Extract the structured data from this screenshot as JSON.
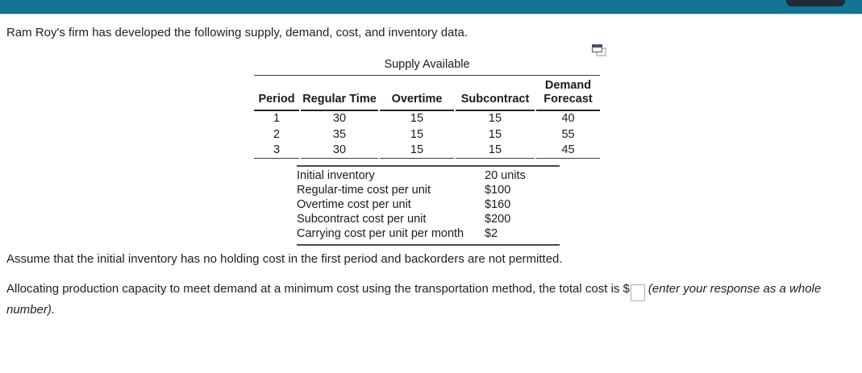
{
  "header": {
    "bar_color": "#117494",
    "nav_button_color": "#1f2b38"
  },
  "question": {
    "intro": "Ram Roy's firm has developed the following supply, demand, cost, and inventory data.",
    "assumption": "Assume that the initial inventory has no holding cost in the first period and backorders are not permitted.",
    "allocation_prompt_before_input": "Allocating production capacity to meet demand at a minimum cost using the transportation method, the total cost is $",
    "allocation_prompt_after_input": "(enter your response as a whole number).",
    "answer_input": {
      "value": "",
      "placeholder": ""
    }
  },
  "icons": {
    "popup_window_icon": "open-table-in-popup-window"
  },
  "supply_table": {
    "caption": "Supply Available",
    "columns": [
      "Period",
      "Regular Time",
      "Overtime",
      "Subcontract",
      "Demand Forecast"
    ],
    "rows": [
      [
        "1",
        "30",
        "15",
        "15",
        "40"
      ],
      [
        "2",
        "35",
        "15",
        "15",
        "55"
      ],
      [
        "3",
        "30",
        "15",
        "15",
        "45"
      ]
    ]
  },
  "cost_table": {
    "rows": [
      {
        "label": "Initial inventory",
        "value": "20 units"
      },
      {
        "label": "Regular-time cost per unit",
        "value": "$100"
      },
      {
        "label": "Overtime cost per unit",
        "value": "$160"
      },
      {
        "label": "Subcontract cost per unit",
        "value": "$200"
      },
      {
        "label": "Carrying cost per unit per month",
        "value": "$2"
      }
    ]
  }
}
